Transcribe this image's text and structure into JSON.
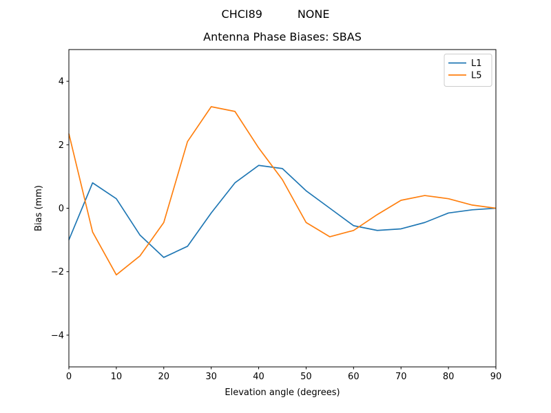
{
  "suptitle": "CHCI89          NONE",
  "colors": {
    "background": "#ffffff",
    "axes": "#000000",
    "legend_border": "#cccccc",
    "l1": "#1f77b4",
    "l5": "#ff7f0e"
  },
  "chart_data": {
    "type": "line",
    "title": "Antenna Phase Biases: SBAS",
    "xlabel": "Elevation angle (degrees)",
    "ylabel": "Bias (mm)",
    "xlim": [
      0,
      90
    ],
    "ylim": [
      -5,
      5
    ],
    "xticks": [
      0,
      10,
      20,
      30,
      40,
      50,
      60,
      70,
      80,
      90
    ],
    "yticks": [
      -4,
      -2,
      0,
      2,
      4
    ],
    "grid": false,
    "legend_position": "upper right",
    "x": [
      0,
      5,
      10,
      15,
      20,
      25,
      30,
      35,
      40,
      45,
      50,
      55,
      60,
      65,
      70,
      75,
      80,
      85,
      90
    ],
    "series": [
      {
        "name": "L1",
        "color": "#1f77b4",
        "values": [
          -1.0,
          0.8,
          0.3,
          -0.85,
          -1.55,
          -1.2,
          -0.15,
          0.8,
          1.35,
          1.25,
          0.55,
          0.0,
          -0.55,
          -0.7,
          -0.65,
          -0.45,
          -0.15,
          -0.05,
          0.0
        ]
      },
      {
        "name": "L5",
        "color": "#ff7f0e",
        "values": [
          2.35,
          -0.75,
          -2.1,
          -1.5,
          -0.45,
          2.1,
          3.2,
          3.05,
          1.9,
          0.9,
          -0.45,
          -0.9,
          -0.7,
          -0.2,
          0.25,
          0.4,
          0.3,
          0.1,
          0.0
        ]
      }
    ]
  }
}
